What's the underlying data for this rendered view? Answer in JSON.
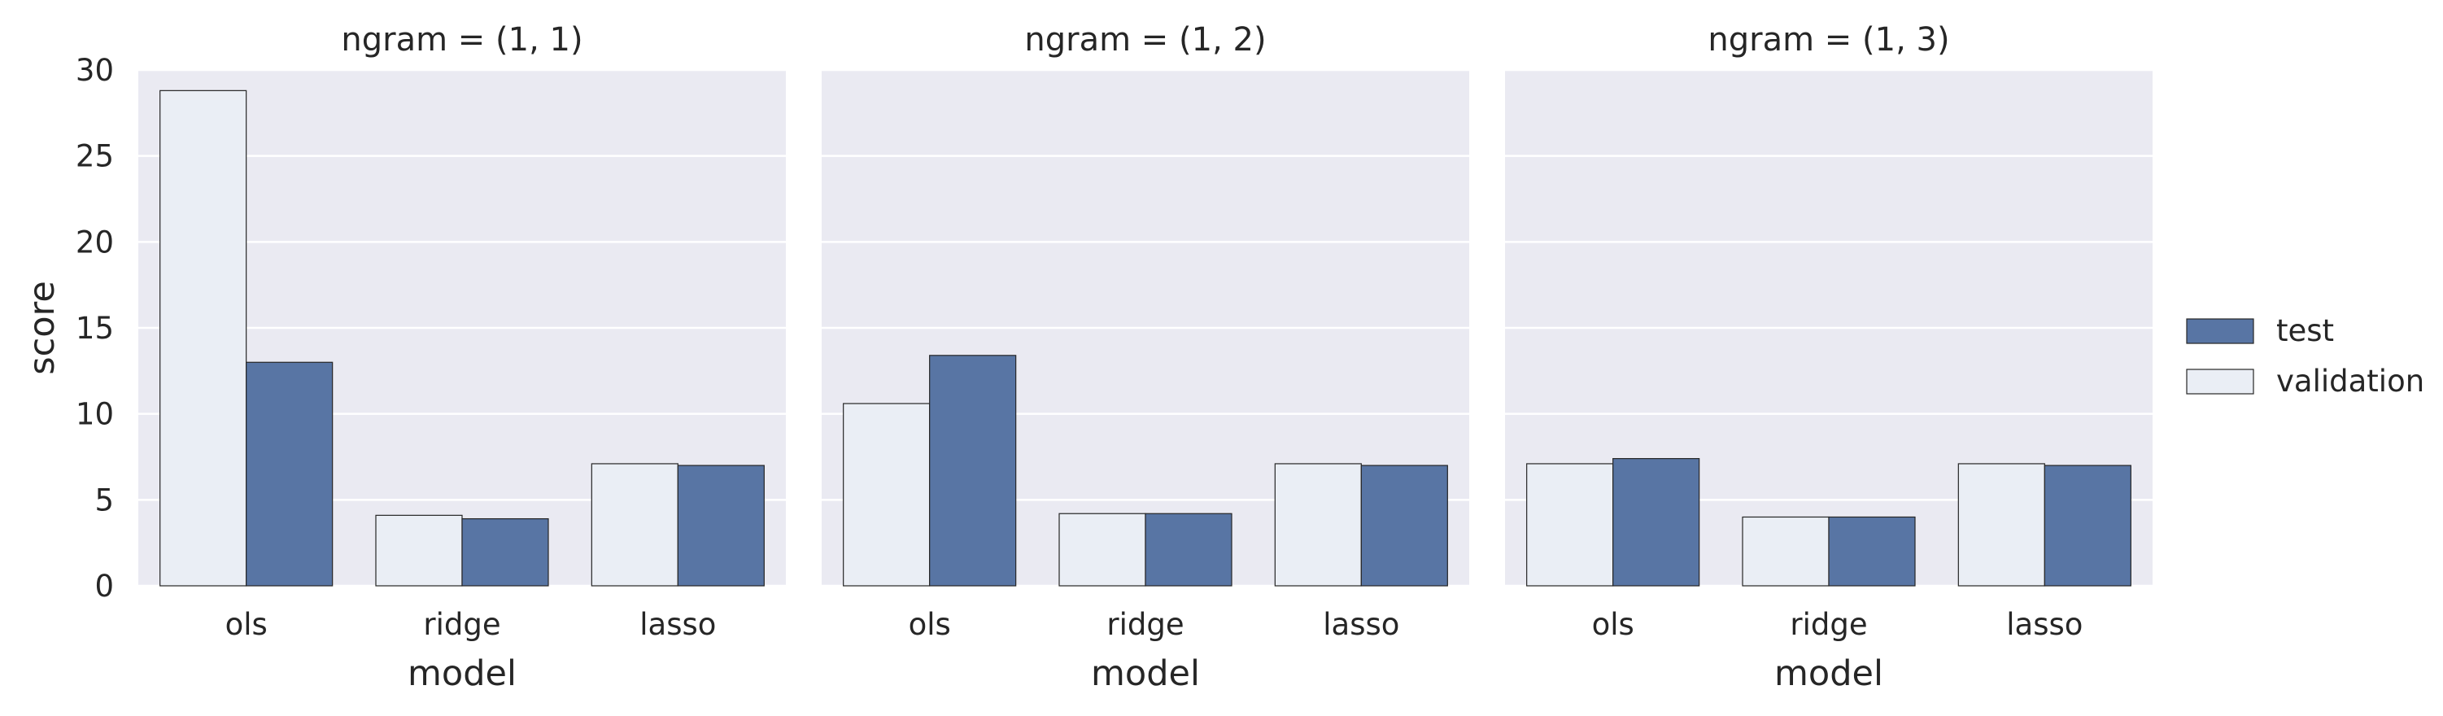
{
  "colors": {
    "test": "#5875a4",
    "validation": "#eaeef5",
    "panel_bg": "#eaeaf2",
    "grid": "#ffffff",
    "bar_edge": "#262626"
  },
  "legend": {
    "placement": "right",
    "items": [
      {
        "label": "test",
        "series": "test"
      },
      {
        "label": "validation",
        "series": "validation"
      }
    ]
  },
  "chart_data": {
    "type": "bar",
    "ylabel": "score",
    "xlabel": "model",
    "ylim": [
      0,
      30
    ],
    "yticks": [
      0,
      5,
      10,
      15,
      20,
      25,
      30
    ],
    "grid": true,
    "categories": [
      "ols",
      "ridge",
      "lasso"
    ],
    "panels": [
      {
        "title": "ngram = (1, 1)",
        "series": [
          {
            "name": "validation",
            "values": [
              28.8,
              4.1,
              7.1
            ]
          },
          {
            "name": "test",
            "values": [
              13.0,
              3.9,
              7.0
            ]
          }
        ]
      },
      {
        "title": "ngram = (1, 2)",
        "series": [
          {
            "name": "validation",
            "values": [
              10.6,
              4.2,
              7.1
            ]
          },
          {
            "name": "test",
            "values": [
              13.4,
              4.2,
              7.0
            ]
          }
        ]
      },
      {
        "title": "ngram = (1, 3)",
        "series": [
          {
            "name": "validation",
            "values": [
              7.1,
              4.0,
              7.1
            ]
          },
          {
            "name": "test",
            "values": [
              7.4,
              4.0,
              7.0
            ]
          }
        ]
      }
    ]
  }
}
